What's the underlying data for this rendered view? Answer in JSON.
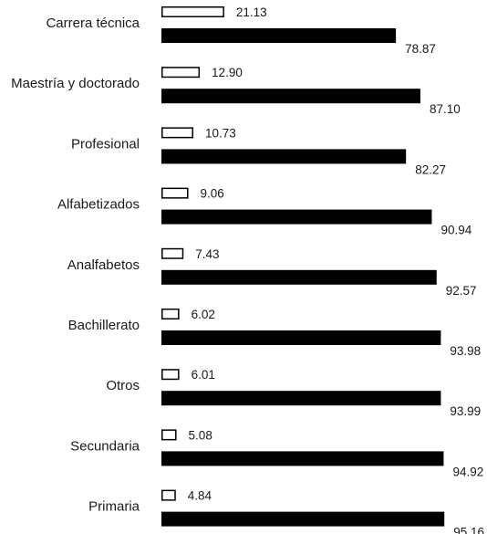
{
  "chart_data": {
    "type": "bar",
    "orientation": "horizontal",
    "grid": false,
    "legend": "none",
    "categories": [
      "Carrera técnica",
      "Maestría y doctorado",
      "Profesional",
      "Alfabetizados",
      "Analfabetos",
      "Bachillerato",
      "Otros",
      "Secundaria",
      "Primaria"
    ],
    "series": [
      {
        "style": "outline",
        "color": "#ffffff",
        "stroke": "#000000",
        "values": [
          21.13,
          12.9,
          10.73,
          9.06,
          7.43,
          6.02,
          6.01,
          5.08,
          4.84
        ],
        "labels": [
          "21.13",
          "12.90",
          "10.73",
          "9.06",
          "7.43",
          "6.02",
          "6.01",
          "5.08",
          "4.84"
        ]
      },
      {
        "style": "solid",
        "color": "#000000",
        "values": [
          78.87,
          87.1,
          82.27,
          90.94,
          92.57,
          93.98,
          93.99,
          94.92,
          95.16
        ],
        "labels": [
          "78.87",
          "87.10",
          "82.27",
          "90.94",
          "92.57",
          "93.98",
          "93.99",
          "94.92",
          "95.16"
        ]
      }
    ],
    "xlim": [
      0,
      100
    ]
  }
}
